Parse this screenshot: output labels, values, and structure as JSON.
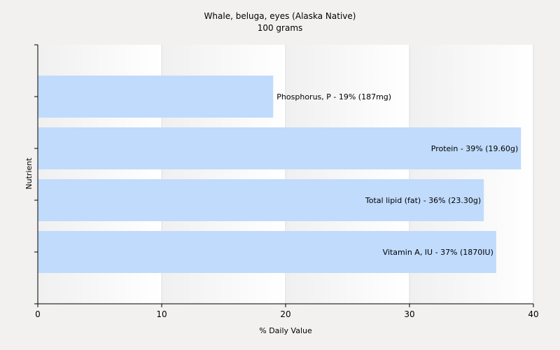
{
  "chart_data": {
    "type": "bar",
    "orientation": "horizontal",
    "title": "Whale, beluga, eyes (Alaska Native)",
    "subtitle": "100 grams",
    "xlabel": "% Daily Value",
    "ylabel": "Nutrient",
    "xlim": [
      0,
      40
    ],
    "xticks": [
      0,
      10,
      20,
      30,
      40
    ],
    "grid": true,
    "bar_color": "#c0dbfc",
    "categories": [
      "Phosphorus, P",
      "Protein",
      "Total lipid (fat)",
      "Vitamin A, IU"
    ],
    "values": [
      19,
      39,
      36,
      37
    ],
    "data_labels": [
      "Phosphorus, P - 19% (187mg)",
      "Protein - 39% (19.60g)",
      "Total lipid (fat) - 36% (23.30g)",
      "Vitamin A, IU - 37% (1870IU)"
    ]
  }
}
